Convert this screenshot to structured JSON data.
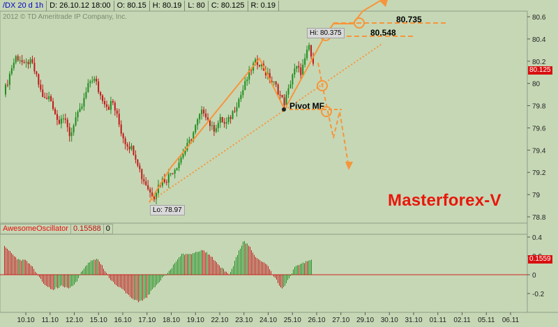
{
  "header": {
    "symbol": "/DX 20 d 1h",
    "date": "D: 26.10.12 18:00",
    "open": "O: 80.15",
    "high": "H: 80.19",
    "low": "L: 80",
    "close": "C: 80.125",
    "range": "R: 0.19"
  },
  "copyright": "2012 © TD Ameritrade IP Company, Inc.",
  "brand": "Masterforex-V",
  "labels": {
    "hi": "Hi: 80.375",
    "lo": "Lo: 78.97",
    "pivot": "Pivot MF",
    "level_1": "80.735",
    "level_2": "80.548",
    "last_price": "80.125"
  },
  "indicator": {
    "name": "AwesomeOscillator",
    "value": "0.15588",
    "param": "0",
    "last_value": "0.1559"
  },
  "colors": {
    "background": "#c6d7b5",
    "bull": "#1e8c1e",
    "bear": "#c01818",
    "annotation": "#f7953a",
    "brand": "#e8170c"
  },
  "chart_data": [
    {
      "type": "candlestick",
      "title": "",
      "x_tick_labels": [
        "10.10",
        "11.10",
        "12.10",
        "15.10",
        "16.10",
        "17.10",
        "18.10",
        "19.10",
        "22.10",
        "23.10",
        "24.10",
        "25.10",
        "26.10",
        "27.10",
        "29.10",
        "30.10",
        "31.10",
        "01.11",
        "02.11",
        "05.11",
        "06.11"
      ],
      "y_tick_labels": [
        "80.6",
        "80.4",
        "80.2",
        "80",
        "79.8",
        "79.6",
        "79.4",
        "79.2",
        "79",
        "78.8"
      ],
      "ylim": [
        78.8,
        80.6
      ],
      "close_path": [
        [
          0,
          79.9
        ],
        [
          6,
          80.02
        ],
        [
          12,
          80.15
        ],
        [
          18,
          80.24
        ],
        [
          24,
          80.22
        ],
        [
          30,
          80.15
        ],
        [
          36,
          80.2
        ],
        [
          42,
          80.16
        ],
        [
          48,
          80.04
        ],
        [
          54,
          79.92
        ],
        [
          60,
          79.84
        ],
        [
          66,
          79.88
        ],
        [
          72,
          79.78
        ],
        [
          78,
          79.65
        ],
        [
          84,
          79.72
        ],
        [
          90,
          79.62
        ],
        [
          96,
          79.52
        ],
        [
          102,
          79.68
        ],
        [
          108,
          79.72
        ],
        [
          114,
          79.82
        ],
        [
          120,
          79.95
        ],
        [
          126,
          80.05
        ],
        [
          132,
          80.02
        ],
        [
          138,
          79.9
        ],
        [
          144,
          79.85
        ],
        [
          150,
          79.78
        ],
        [
          156,
          79.84
        ],
        [
          162,
          79.72
        ],
        [
          168,
          79.58
        ],
        [
          174,
          79.48
        ],
        [
          180,
          79.44
        ],
        [
          186,
          79.4
        ],
        [
          192,
          79.3
        ],
        [
          198,
          79.16
        ],
        [
          204,
          79.1
        ],
        [
          210,
          79.02
        ],
        [
          216,
          78.99
        ],
        [
          222,
          79.08
        ],
        [
          228,
          79.13
        ],
        [
          234,
          79.14
        ],
        [
          240,
          79.2
        ],
        [
          246,
          79.24
        ],
        [
          252,
          79.3
        ],
        [
          258,
          79.38
        ],
        [
          264,
          79.44
        ],
        [
          270,
          79.52
        ],
        [
          276,
          79.62
        ],
        [
          282,
          79.72
        ],
        [
          288,
          79.76
        ],
        [
          294,
          79.66
        ],
        [
          300,
          79.58
        ],
        [
          306,
          79.63
        ],
        [
          312,
          79.68
        ],
        [
          318,
          79.62
        ],
        [
          324,
          79.68
        ],
        [
          330,
          79.76
        ],
        [
          336,
          79.84
        ],
        [
          342,
          79.92
        ],
        [
          348,
          80.02
        ],
        [
          354,
          80.12
        ],
        [
          360,
          80.18
        ],
        [
          366,
          80.2
        ],
        [
          372,
          80.14
        ],
        [
          378,
          80.07
        ],
        [
          384,
          80.02
        ],
        [
          390,
          79.98
        ],
        [
          396,
          79.9
        ],
        [
          402,
          79.82
        ],
        [
          408,
          79.92
        ],
        [
          414,
          80.08
        ],
        [
          420,
          80.14
        ],
        [
          426,
          80.1
        ],
        [
          432,
          80.2
        ],
        [
          438,
          80.34
        ],
        [
          444,
          80.15
        ]
      ]
    },
    {
      "type": "bar",
      "title": "AwesomeOscillator",
      "y_tick_labels": [
        "0.4",
        "0.2",
        "0",
        "-0.2"
      ],
      "ylim": [
        -0.3,
        0.45
      ],
      "ao_path": [
        [
          0,
          0.32
        ],
        [
          8,
          0.25
        ],
        [
          20,
          0.16
        ],
        [
          32,
          0.15
        ],
        [
          42,
          0.07
        ],
        [
          50,
          -0.02
        ],
        [
          58,
          -0.1
        ],
        [
          70,
          -0.16
        ],
        [
          82,
          -0.12
        ],
        [
          94,
          -0.14
        ],
        [
          104,
          -0.08
        ],
        [
          112,
          0.04
        ],
        [
          124,
          0.15
        ],
        [
          134,
          0.17
        ],
        [
          144,
          0.06
        ],
        [
          154,
          -0.07
        ],
        [
          164,
          -0.12
        ],
        [
          174,
          -0.18
        ],
        [
          184,
          -0.26
        ],
        [
          194,
          -0.29
        ],
        [
          204,
          -0.25
        ],
        [
          214,
          -0.15
        ],
        [
          224,
          -0.06
        ],
        [
          232,
          0.0
        ],
        [
          240,
          0.06
        ],
        [
          248,
          0.16
        ],
        [
          256,
          0.22
        ],
        [
          264,
          0.22
        ],
        [
          272,
          0.22
        ],
        [
          282,
          0.26
        ],
        [
          290,
          0.24
        ],
        [
          298,
          0.19
        ],
        [
          306,
          0.12
        ],
        [
          314,
          0.06
        ],
        [
          324,
          0.0
        ],
        [
          334,
          0.2
        ],
        [
          344,
          0.36
        ],
        [
          352,
          0.3
        ],
        [
          360,
          0.2
        ],
        [
          368,
          0.15
        ],
        [
          376,
          0.12
        ],
        [
          382,
          0.05
        ],
        [
          390,
          -0.05
        ],
        [
          398,
          -0.15
        ],
        [
          404,
          -0.11
        ],
        [
          410,
          -0.02
        ],
        [
          418,
          0.09
        ],
        [
          426,
          0.12
        ],
        [
          434,
          0.14
        ],
        [
          442,
          0.16
        ]
      ]
    }
  ]
}
